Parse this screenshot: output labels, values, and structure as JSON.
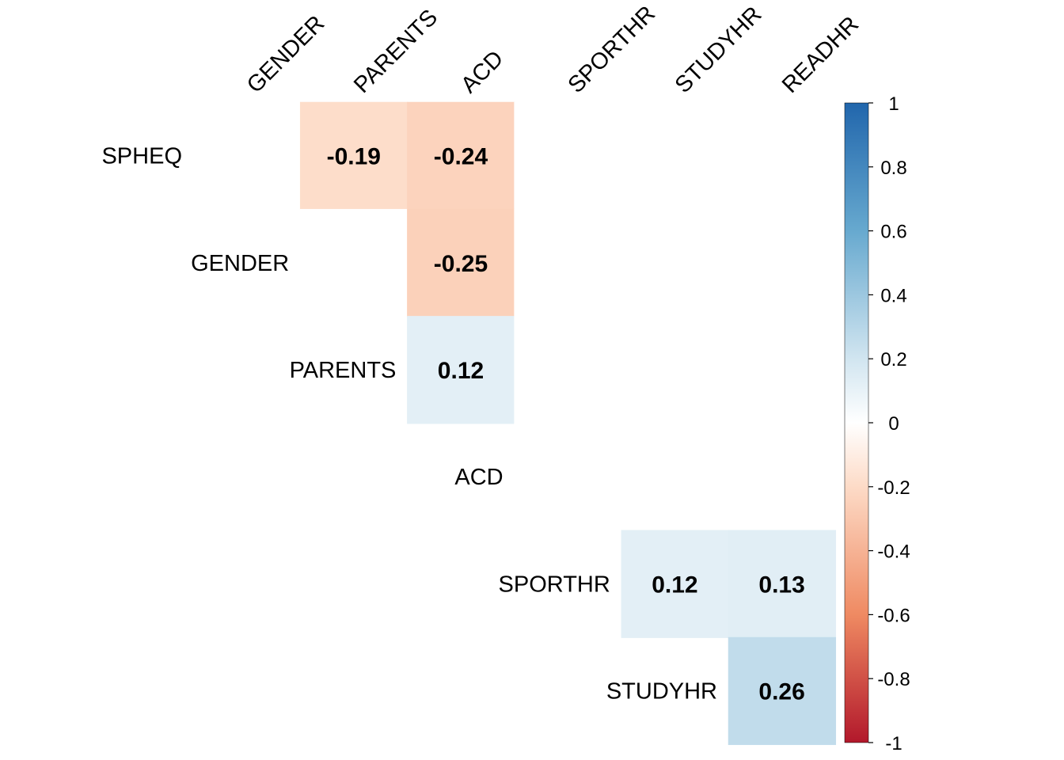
{
  "chart_data": {
    "type": "heatmap",
    "row_labels": [
      "SPHEQ",
      "GENDER",
      "PARENTS",
      "ACD",
      "SPORTHR",
      "STUDYHR"
    ],
    "col_labels": [
      "GENDER",
      "PARENTS",
      "ACD",
      "SPORTHR",
      "STUDYHR",
      "READHR"
    ],
    "cells": [
      {
        "row": "SPHEQ",
        "col": "GENDER",
        "value": 0,
        "label": ""
      },
      {
        "row": "SPHEQ",
        "col": "PARENTS",
        "value": -0.19,
        "label": "-0.19"
      },
      {
        "row": "SPHEQ",
        "col": "ACD",
        "value": -0.24,
        "label": "-0.24"
      },
      {
        "row": "SPHEQ",
        "col": "SPORTHR",
        "value": 0,
        "label": ""
      },
      {
        "row": "SPHEQ",
        "col": "STUDYHR",
        "value": 0,
        "label": ""
      },
      {
        "row": "SPHEQ",
        "col": "READHR",
        "value": 0,
        "label": ""
      },
      {
        "row": "GENDER",
        "col": "PARENTS",
        "value": 0,
        "label": ""
      },
      {
        "row": "GENDER",
        "col": "ACD",
        "value": -0.25,
        "label": "-0.25"
      },
      {
        "row": "GENDER",
        "col": "SPORTHR",
        "value": 0,
        "label": ""
      },
      {
        "row": "GENDER",
        "col": "STUDYHR",
        "value": 0,
        "label": ""
      },
      {
        "row": "GENDER",
        "col": "READHR",
        "value": 0,
        "label": ""
      },
      {
        "row": "PARENTS",
        "col": "ACD",
        "value": 0.12,
        "label": "0.12"
      },
      {
        "row": "PARENTS",
        "col": "SPORTHR",
        "value": 0,
        "label": ""
      },
      {
        "row": "PARENTS",
        "col": "STUDYHR",
        "value": 0,
        "label": ""
      },
      {
        "row": "PARENTS",
        "col": "READHR",
        "value": 0,
        "label": ""
      },
      {
        "row": "ACD",
        "col": "SPORTHR",
        "value": 0,
        "label": ""
      },
      {
        "row": "ACD",
        "col": "STUDYHR",
        "value": 0,
        "label": ""
      },
      {
        "row": "ACD",
        "col": "READHR",
        "value": 0,
        "label": ""
      },
      {
        "row": "SPORTHR",
        "col": "STUDYHR",
        "value": 0.12,
        "label": "0.12"
      },
      {
        "row": "SPORTHR",
        "col": "READHR",
        "value": 0.13,
        "label": "0.13"
      },
      {
        "row": "STUDYHR",
        "col": "READHR",
        "value": 0.26,
        "label": "0.26"
      }
    ],
    "colorbar": {
      "ticks": [
        "1",
        "0.8",
        "0.6",
        "0.4",
        "0.2",
        "0",
        "-0.2",
        "-0.4",
        "-0.6",
        "-0.8",
        "-1"
      ],
      "tick_values": [
        1,
        0.8,
        0.6,
        0.4,
        0.2,
        0,
        -0.2,
        -0.4,
        -0.6,
        -0.8,
        -1
      ],
      "range": [
        -1,
        1
      ],
      "colors": {
        "negative_end": "#B2182B",
        "negative_mid": "#EF8A62",
        "negative_light": "#FDDBC7",
        "zero": "#FFFFFF",
        "positive_light": "#D1E5F0",
        "positive_mid": "#67A9CF",
        "positive_end": "#2166AC"
      },
      "placement": "right"
    }
  }
}
